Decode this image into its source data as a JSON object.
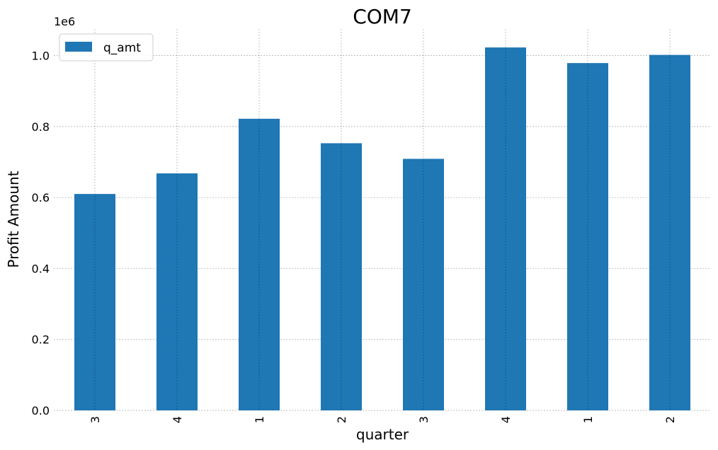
{
  "chart_data": {
    "type": "bar",
    "title": "COM7",
    "xlabel": "quarter",
    "ylabel": "Profit Amount",
    "scale_label": "1e6",
    "categories": [
      "3",
      "4",
      "1",
      "2",
      "3",
      "4",
      "1",
      "2"
    ],
    "series": [
      {
        "name": "q_amt",
        "color": "#1f77b4",
        "values": [
          610000,
          668000,
          822000,
          753000,
          709000,
          1023000,
          979000,
          1002000
        ]
      }
    ],
    "ylim": [
      0,
      1075000
    ],
    "yticks": [
      0,
      200000,
      400000,
      600000,
      800000,
      1000000
    ],
    "ytick_labels": [
      "0.0",
      "0.2",
      "0.4",
      "0.6",
      "0.8",
      "1.0"
    ],
    "grid": true,
    "legend_position": "upper left"
  }
}
